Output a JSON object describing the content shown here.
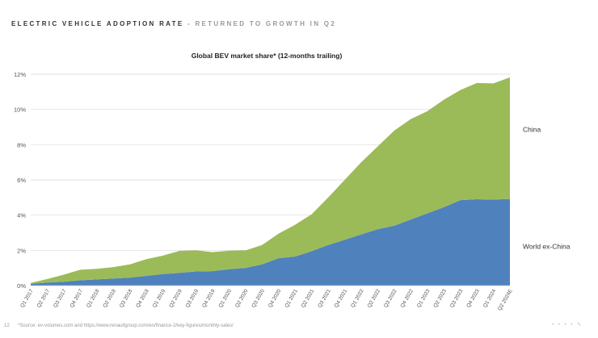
{
  "header": {
    "lead": "ELECTRIC VEHICLE ADOPTION RATE",
    "dash": " - ",
    "sub": "RETURNED TO GROWTH IN Q2"
  },
  "chart_data": {
    "type": "area",
    "stacked": true,
    "title": "Global BEV market share* (12-months trailing)",
    "xlabel": "",
    "ylabel": "",
    "ylim": [
      0,
      12
    ],
    "yticks": [
      0,
      2,
      4,
      6,
      8,
      10,
      12
    ],
    "ytick_labels": [
      "0%",
      "2%",
      "4%",
      "6%",
      "8%",
      "10%",
      "12%"
    ],
    "grid": true,
    "categories": [
      "Q1 2017",
      "Q2 2017",
      "Q3 2017",
      "Q4 2017",
      "Q1 2018",
      "Q2 2018",
      "Q3 2018",
      "Q4 2018",
      "Q1 2019",
      "Q2 2019",
      "Q3 2019",
      "Q4 2019",
      "Q1 2020",
      "Q2 2020",
      "Q3 2020",
      "Q4 2020",
      "Q1 2021",
      "Q2 2021",
      "Q3 2021",
      "Q4 2021",
      "Q1 2022",
      "Q2 2022",
      "Q3 2022",
      "Q4 2022",
      "Q1 2023",
      "Q2 2023",
      "Q3 2023",
      "Q4 2023",
      "Q1 2024",
      "Q2 2024E"
    ],
    "series": [
      {
        "name": "World ex-China",
        "color": "#4f81bd",
        "values": [
          0.1,
          0.17,
          0.22,
          0.3,
          0.35,
          0.4,
          0.45,
          0.55,
          0.65,
          0.72,
          0.8,
          0.82,
          0.93,
          1.0,
          1.2,
          1.55,
          1.65,
          1.95,
          2.3,
          2.6,
          2.9,
          3.2,
          3.4,
          3.75,
          4.1,
          4.45,
          4.85,
          4.9,
          4.88,
          4.92
        ]
      },
      {
        "name": "China",
        "color": "#9bbb59",
        "values": [
          0.05,
          0.2,
          0.4,
          0.6,
          0.6,
          0.65,
          0.75,
          0.95,
          1.05,
          1.25,
          1.2,
          1.08,
          1.05,
          1.0,
          1.1,
          1.4,
          1.8,
          2.1,
          2.7,
          3.4,
          4.1,
          4.7,
          5.4,
          5.7,
          5.8,
          6.1,
          6.25,
          6.6,
          6.6,
          6.9
        ]
      }
    ],
    "legend": [
      {
        "label": "China",
        "placement": "right"
      },
      {
        "label": "World ex-China",
        "placement": "right"
      }
    ]
  },
  "footer": {
    "page_number": "12",
    "source": "*Source: ev-volumes.com and https://www.renaultgroup.com/en/finance-2/key-figures/monthly-sales/"
  }
}
